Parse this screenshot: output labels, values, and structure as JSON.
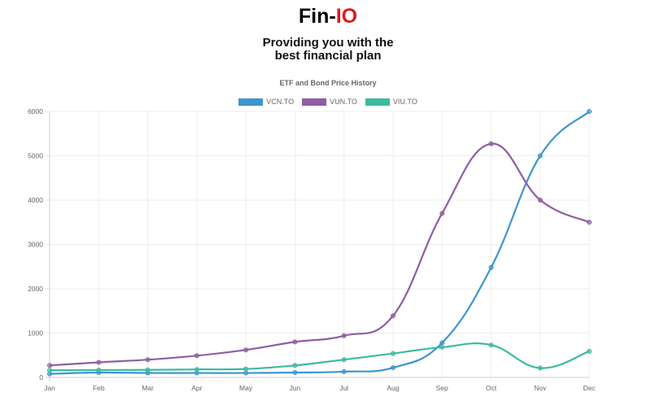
{
  "header": {
    "brand_prefix": "Fin-",
    "brand_accent": "IO",
    "tagline_line1": "Providing you with the",
    "tagline_line2": "best financial plan"
  },
  "colors": {
    "brand_accent": "#e0191b",
    "vcn": "#3e95cd",
    "vun": "#8e5ea2",
    "viu": "#3cba9f"
  },
  "chart_data": {
    "type": "line",
    "title": "ETF and Bond Price History",
    "xlabel": "",
    "ylabel": "",
    "categories": [
      "Jan",
      "Feb",
      "Mar",
      "Apr",
      "May",
      "Jun",
      "Jul",
      "Aug",
      "Sep",
      "Oct",
      "Nov",
      "Dec"
    ],
    "ylim": [
      0,
      6000
    ],
    "yticks": [
      0,
      1000,
      2000,
      3000,
      4000,
      5000,
      6000
    ],
    "grid": true,
    "legend_position": "top",
    "series": [
      {
        "name": "VCN.TO",
        "color": "#3e95cd",
        "values": [
          80,
          110,
          100,
          100,
          100,
          110,
          130,
          220,
          780,
          2480,
          5000,
          6000
        ]
      },
      {
        "name": "VUN.TO",
        "color": "#8e5ea2",
        "values": [
          270,
          340,
          400,
          490,
          620,
          800,
          940,
          1390,
          3700,
          5270,
          4000,
          3500
        ]
      },
      {
        "name": "VIU.TO",
        "color": "#3cba9f",
        "values": [
          160,
          165,
          170,
          180,
          190,
          270,
          400,
          540,
          680,
          730,
          210,
          590
        ]
      }
    ]
  }
}
